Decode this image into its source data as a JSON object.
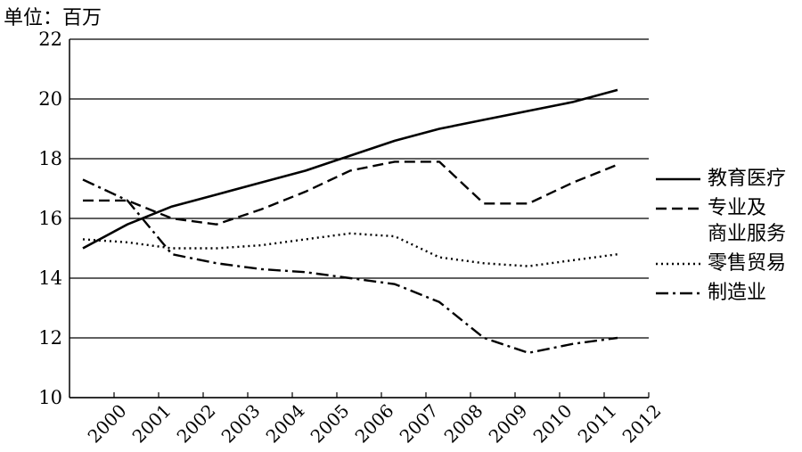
{
  "chart_data": {
    "type": "line",
    "unit_label": "单位：百万",
    "x": [
      "2000",
      "2001",
      "2002",
      "2003",
      "2004",
      "2005",
      "2006",
      "2007",
      "2008",
      "2009",
      "2010",
      "2011",
      "2012"
    ],
    "ylim": [
      10,
      22
    ],
    "yticks": [
      10,
      12,
      14,
      16,
      18,
      20,
      22
    ],
    "grid": "horizontal",
    "legend_position": "right",
    "series": [
      {
        "name": "教育医疗",
        "style": "solid",
        "values": [
          15.0,
          15.8,
          16.4,
          16.8,
          17.2,
          17.6,
          18.1,
          18.6,
          19.0,
          19.3,
          19.6,
          19.9,
          20.3
        ]
      },
      {
        "name": "专业及\n商业服务",
        "style": "dashed",
        "values": [
          16.6,
          16.6,
          16.0,
          15.8,
          16.3,
          16.9,
          17.6,
          17.9,
          17.9,
          16.5,
          16.5,
          17.2,
          17.8
        ]
      },
      {
        "name": "零售贸易",
        "style": "dotted",
        "values": [
          15.3,
          15.2,
          15.0,
          15.0,
          15.1,
          15.3,
          15.5,
          15.4,
          14.7,
          14.5,
          14.4,
          14.6,
          14.8
        ]
      },
      {
        "name": "制造业",
        "style": "dashdot",
        "values": [
          17.3,
          16.6,
          14.8,
          14.5,
          14.3,
          14.2,
          14.0,
          13.8,
          13.2,
          12.0,
          11.5,
          11.8,
          12.0
        ]
      }
    ]
  }
}
